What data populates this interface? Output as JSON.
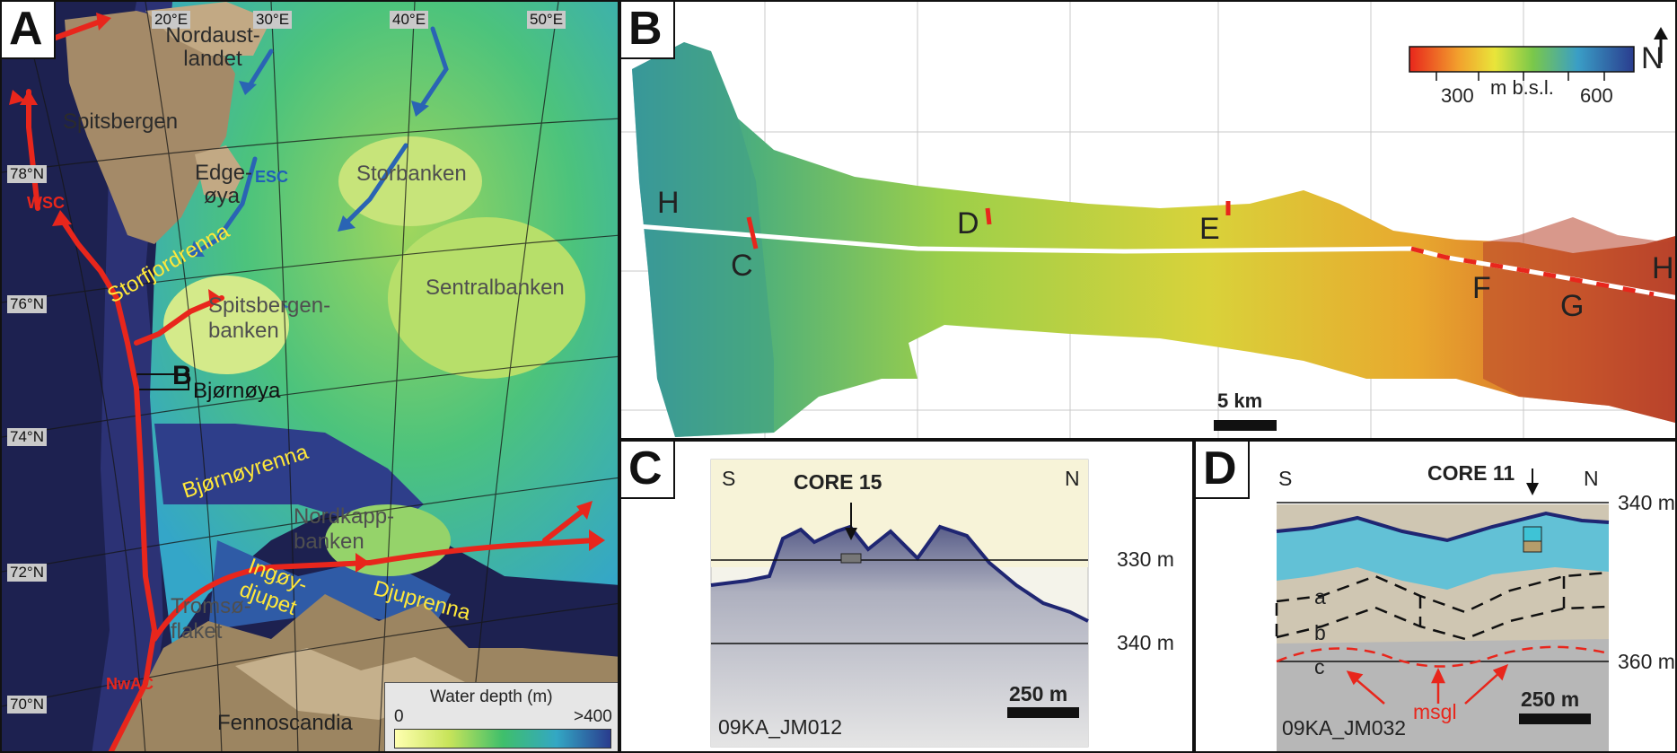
{
  "panel_a": {
    "label": "A",
    "lon_labels": [
      "20°E",
      "30°E",
      "40°E",
      "50°E"
    ],
    "lat_labels": [
      "78°N",
      "76°N",
      "74°N",
      "72°N",
      "70°N"
    ],
    "places": {
      "nordaustlandet": "Nordaust-\nlandet",
      "spitsbergen": "Spitsbergen",
      "edgeoya": "Edge-\nøya",
      "storbanken": "Storbanken",
      "sentralbanken": "Sentralbanken",
      "spitsbergenbanken": "Spitsbergen-\nbanken",
      "bjornoya": "Bjørnøya",
      "nordkappbanken": "Nordkapp-\nbanken",
      "tromsoflaket": "Tromsø-\nflaket",
      "fennoscandia": "Fennoscandia",
      "box_label": "B"
    },
    "troughs": {
      "storfjordrenna": "Storfjordrenna",
      "bjornoyrenna": "Bjørnøyrenna",
      "ingoydjupet": "Ingøy-\ndjupet",
      "djuprenna": "Djuprenna"
    },
    "currents": {
      "wsc": "WSC",
      "nwac": "NwAC",
      "esc": "ESC"
    },
    "legend": {
      "title": "Water depth (m)",
      "min": "0",
      "max": ">400"
    },
    "colors": {
      "warm_current": "#e8261c",
      "cold_current": "#2a64b4",
      "trough_label": "#ffe83a"
    }
  },
  "panel_b": {
    "label": "B",
    "profile_letters": [
      "H",
      "C",
      "D",
      "E",
      "F",
      "G",
      "H"
    ],
    "colorbar": {
      "tick1": "300",
      "tick2": "600",
      "unit": "m b.s.l.",
      "north": "N"
    },
    "scale": "5 km"
  },
  "panel_c": {
    "label": "C",
    "south": "S",
    "north": "N",
    "core": "CORE 15",
    "depth_upper": "330 m",
    "depth_lower": "340 m",
    "line_id": "09KA_JM012",
    "scale": "250 m"
  },
  "panel_d": {
    "label": "D",
    "south": "S",
    "north": "N",
    "core": "CORE 11",
    "depth_upper": "340 m",
    "depth_lower": "360 m",
    "units": [
      "a",
      "b",
      "c"
    ],
    "feature": "msgl",
    "line_id": "09KA_JM032",
    "scale": "250 m"
  }
}
